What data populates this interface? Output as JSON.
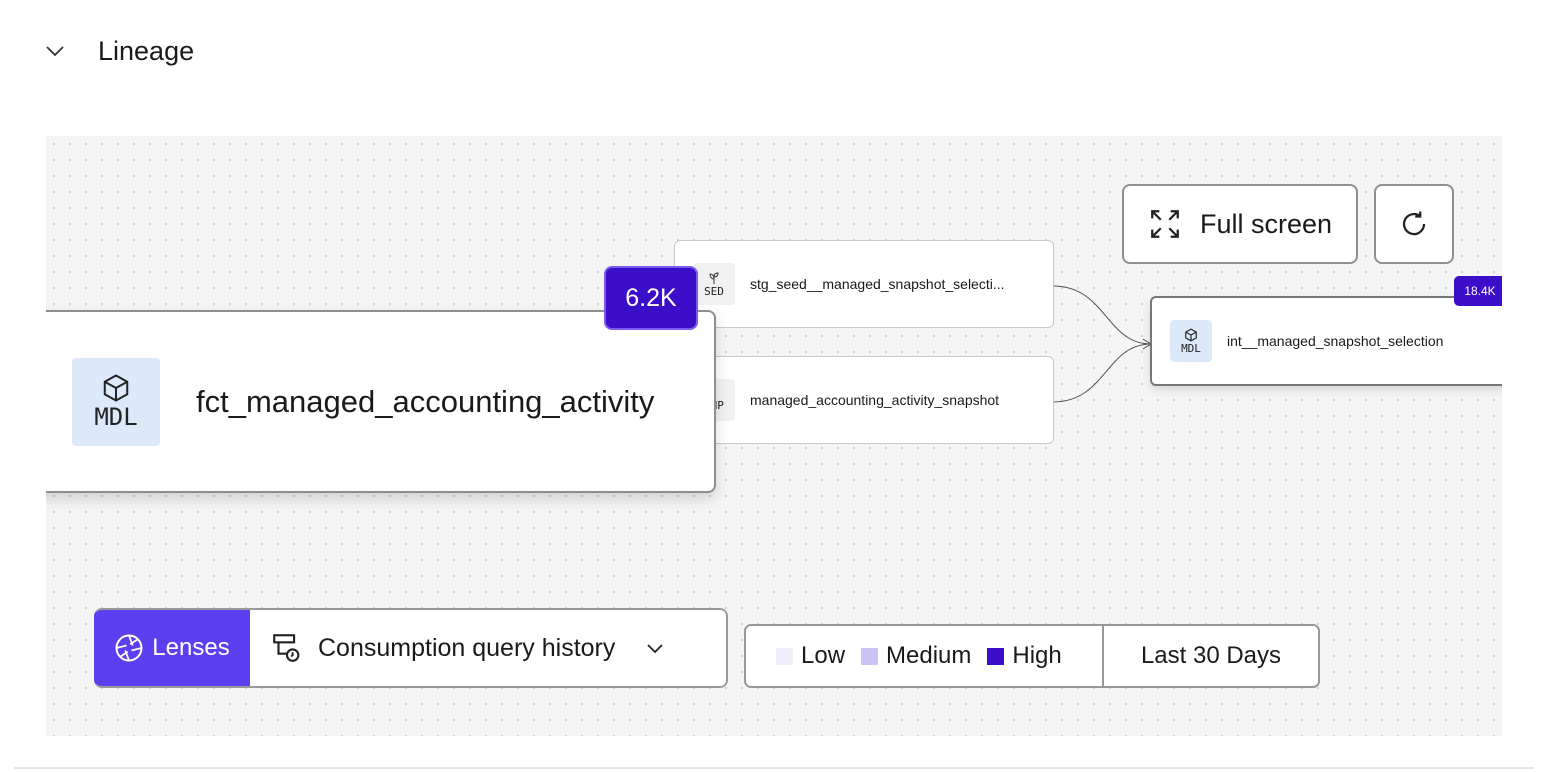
{
  "section": {
    "title": "Lineage",
    "collapse_icon": "chevron-down-icon"
  },
  "toolbar": {
    "fullscreen_label": "Full screen",
    "refresh_icon": "refresh-icon"
  },
  "nodes": {
    "main": {
      "type": "MDL",
      "name": "fct_managed_accounting_activity",
      "count": "6.2K"
    },
    "upstream1": {
      "type": "SED",
      "name": "stg_seed__managed_snapshot_selecti..."
    },
    "upstream2": {
      "type": "SNP",
      "name": "managed_accounting_activity_snapshot"
    },
    "downstream": {
      "type": "MDL",
      "name": "int__managed_snapshot_selection",
      "count": "18.4K"
    }
  },
  "lenses": {
    "label": "Lenses",
    "selected": "Consumption query history"
  },
  "legend": {
    "items": [
      {
        "label": "Low",
        "color": "#f0eefc"
      },
      {
        "label": "Medium",
        "color": "#cbc2f5"
      },
      {
        "label": "High",
        "color": "#3b0ec9"
      }
    ],
    "range": "Last 30 Days"
  },
  "colors": {
    "accent": "#3b0ec9",
    "lenses": "#5b3ff0"
  }
}
